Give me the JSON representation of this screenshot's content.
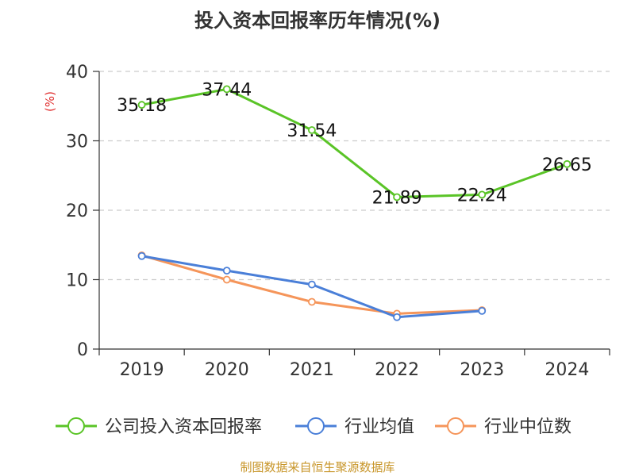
{
  "chart_data": {
    "type": "line",
    "title": "投入资本回报率历年情况(%)",
    "ylabel": "(%)",
    "xlabel": "",
    "categories": [
      "2019",
      "2020",
      "2021",
      "2022",
      "2023",
      "2024"
    ],
    "ylim": [
      0,
      40
    ],
    "yticks": [
      0,
      10,
      20,
      30,
      40
    ],
    "grid": "horizontal dashed",
    "series": [
      {
        "name": "公司投入资本回报率",
        "color": "#5ac427",
        "values": [
          35.18,
          37.44,
          31.54,
          21.89,
          22.24,
          26.65
        ],
        "labels": [
          "35.18",
          "37.44",
          "31.54",
          "21.89",
          "22.24",
          "26.65"
        ]
      },
      {
        "name": "行业均值",
        "color": "#4a7fd8",
        "values": [
          13.4,
          11.3,
          9.3,
          4.6,
          5.5,
          null
        ]
      },
      {
        "name": "行业中位数",
        "color": "#f5955a",
        "values": [
          13.5,
          10.0,
          6.8,
          5.1,
          5.6,
          null
        ]
      }
    ],
    "legend_position": "bottom",
    "source": "制图数据来自恒生聚源数据库"
  }
}
